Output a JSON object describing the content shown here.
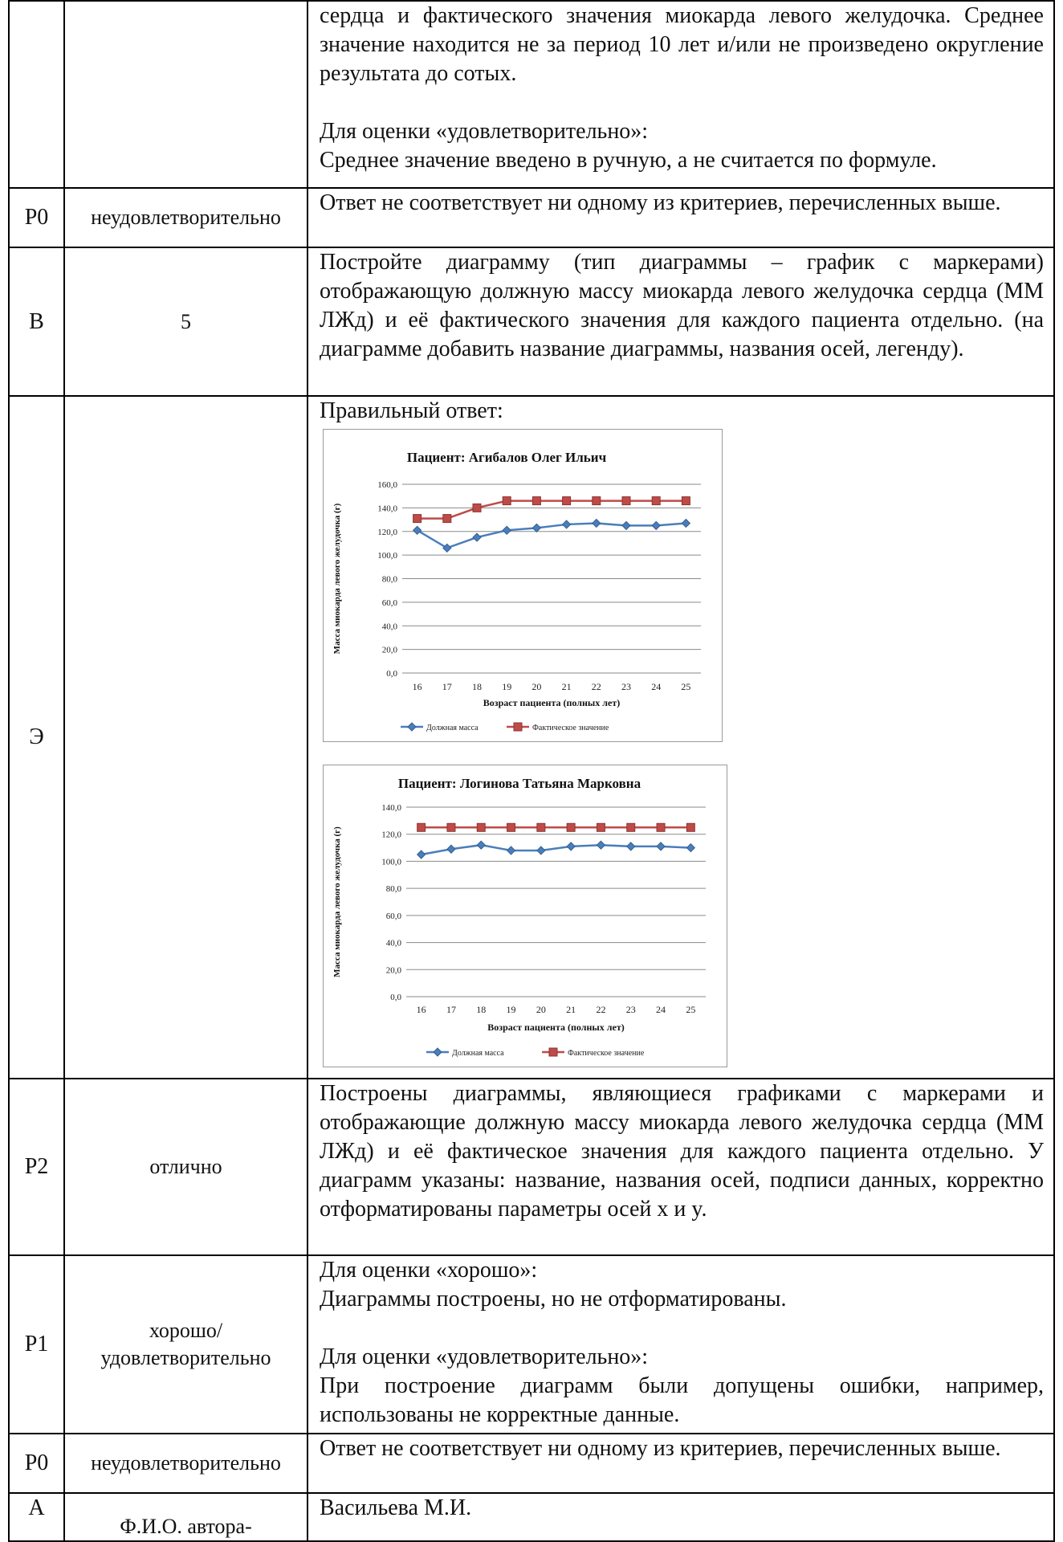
{
  "rows": {
    "r0": {
      "lines": [
        "сердца и фактического значения миокарда левого желудочка. Среднее значение находится не за период 10 лет и/или не произведено округление результата до сотых.",
        "Для оценки «удовлетворительно»:",
        "Среднее значение введено в ручную, а не считается по формуле."
      ]
    },
    "r1": {
      "code": "Р0",
      "grade": "неудовлетворительно",
      "text": "Ответ не соответствует ни одному из критериев, перечисленных выше."
    },
    "r2": {
      "code": "В",
      "grade": "5",
      "text": "Постройте диаграмму (тип диаграммы – график с маркерами) отображающую должную массу миокарда левого желудочка сердца (ММ ЛЖд) и её фактического значения для каждого пациента отдельно. (на диаграмме добавить название диаграммы, названия осей, легенду)."
    },
    "r3": {
      "code": "Э",
      "text": "Правильный ответ:"
    },
    "r4": {
      "code": "Р2",
      "grade": "отлично",
      "text": "Построены диаграммы, являющиеся графиками с маркерами и отображающие должную массу миокарда левого желудочка сердца (ММ ЛЖд) и её фактическое значения для каждого пациента отдельно. У диаграмм указаны: название, названия осей, подписи данных, корректно отформатированы параметры осей x и y."
    },
    "r5": {
      "code": "Р1",
      "grade_line1": "хорошо/",
      "grade_line2": "удовлетворительно",
      "lines": [
        "Для оценки «хорошо»:",
        "Диаграммы построены, но не отформатированы.",
        "Для оценки «удовлетворительно»:",
        "При построение диаграмм были допущены ошибки, например, использованы не корректные данные."
      ]
    },
    "r6": {
      "code": "Р0",
      "grade": "неудовлетворительно",
      "text": "Ответ не соответствует ни одному из критериев, перечисленных выше."
    },
    "r7": {
      "code": "А",
      "grade": "Ф.И.О. автора-",
      "text": "Васильева М.И."
    }
  },
  "chart_data": [
    {
      "type": "line",
      "title": "Пациент: Агибалов Олег Ильич",
      "xlabel": "Возраст пациента (полных лет)",
      "ylabel": "Масса миокарда левого желудочка (г)",
      "categories": [
        "16",
        "17",
        "18",
        "19",
        "20",
        "21",
        "22",
        "23",
        "24",
        "25"
      ],
      "y_ticks": [
        "0,0",
        "20,0",
        "40,0",
        "60,0",
        "80,0",
        "100,0",
        "120,0",
        "140,0",
        "160,0"
      ],
      "ylim": [
        0,
        160
      ],
      "series": [
        {
          "name": "Должная масса",
          "color": "#4a7ebb",
          "marker": "diamond",
          "values": [
            121,
            106,
            115,
            121,
            123,
            126,
            127,
            125,
            125,
            127
          ]
        },
        {
          "name": "Фактическое значение",
          "color": "#be4b48",
          "marker": "square",
          "values": [
            131,
            131,
            140,
            146,
            146,
            146,
            146,
            146,
            146,
            146
          ]
        }
      ],
      "legend": "bottom",
      "grid": true
    },
    {
      "type": "line",
      "title": "Пациент: Логинова Татьяна Марковна",
      "xlabel": "Возраст пациента (полных лет)",
      "ylabel": "Масса миокарда левого желудочка (г)",
      "categories": [
        "16",
        "17",
        "18",
        "19",
        "20",
        "21",
        "22",
        "23",
        "24",
        "25"
      ],
      "y_ticks": [
        "0,0",
        "20,0",
        "40,0",
        "60,0",
        "80,0",
        "100,0",
        "120,0",
        "140,0"
      ],
      "ylim": [
        0,
        140
      ],
      "series": [
        {
          "name": "Должная масса",
          "color": "#4a7ebb",
          "marker": "diamond",
          "values": [
            105,
            109,
            112,
            108,
            108,
            111,
            112,
            111,
            111,
            110
          ]
        },
        {
          "name": "Фактическое значение",
          "color": "#be4b48",
          "marker": "square",
          "values": [
            125,
            125,
            125,
            125,
            125,
            125,
            125,
            125,
            125,
            125
          ]
        }
      ],
      "legend": "bottom",
      "grid": true
    }
  ]
}
